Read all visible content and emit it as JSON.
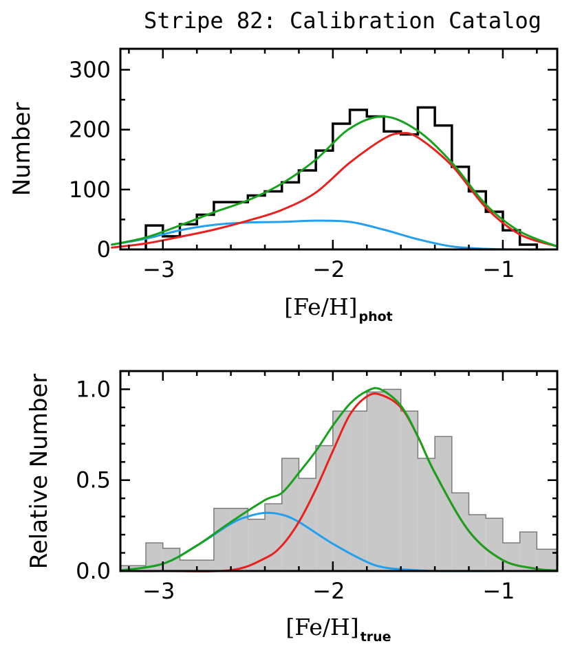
{
  "page": {
    "title": "Stripe 82: Calibration Catalog"
  },
  "chart_data": [
    {
      "type": "line",
      "panel": "top",
      "ylabel": "Number",
      "xlabel": {
        "main": "[Fe/H]",
        "sub": "phot"
      },
      "xlim": [
        -3.25,
        -0.68
      ],
      "ylim": [
        0,
        335
      ],
      "x_tick_labels": [
        {
          "v": -3,
          "label": "−3"
        },
        {
          "v": -2,
          "label": "−2"
        },
        {
          "v": -1,
          "label": "−1"
        }
      ],
      "y_tick_labels": [
        {
          "v": 0,
          "label": "0"
        },
        {
          "v": 100,
          "label": "100"
        },
        {
          "v": 200,
          "label": "200"
        },
        {
          "v": 300,
          "label": "300"
        }
      ],
      "x_minor_step": 0.2,
      "y_minor_step": 50,
      "histogram": {
        "style": "step",
        "color": "#000000",
        "bin_edges": [
          -3.1,
          -3.0,
          -2.9,
          -2.8,
          -2.7,
          -2.6,
          -2.5,
          -2.4,
          -2.3,
          -2.2,
          -2.1,
          -2.0,
          -1.9,
          -1.8,
          -1.7,
          -1.6,
          -1.5,
          -1.4,
          -1.3,
          -1.2,
          -1.1,
          -1.0,
          -0.9,
          -0.8
        ],
        "counts": [
          40,
          22,
          42,
          58,
          79,
          79,
          90,
          97,
          112,
          132,
          165,
          210,
          233,
          222,
          197,
          192,
          237,
          207,
          138,
          97,
          63,
          32,
          8
        ]
      },
      "series": [
        {
          "color": "#22a0ef",
          "x": [
            -3.3,
            -3.1,
            -2.9,
            -2.7,
            -2.5,
            -2.3,
            -2.1,
            -1.9,
            -1.7,
            -1.5,
            -1.3,
            -1.1,
            -0.9,
            -0.68
          ],
          "y": [
            8,
            18,
            32,
            41,
            45,
            46,
            48,
            46,
            33,
            17,
            5,
            1,
            0,
            0
          ]
        },
        {
          "color": "#e8201e",
          "x": [
            -3.3,
            -3.1,
            -2.9,
            -2.7,
            -2.5,
            -2.3,
            -2.1,
            -1.9,
            -1.7,
            -1.6,
            -1.5,
            -1.3,
            -1.1,
            -0.9,
            -0.68
          ],
          "y": [
            3,
            10,
            21,
            33,
            48,
            66,
            95,
            145,
            185,
            194,
            187,
            140,
            70,
            25,
            5
          ]
        },
        {
          "color": "#17a11c",
          "x": [
            -3.3,
            -3.1,
            -2.9,
            -2.7,
            -2.5,
            -2.3,
            -2.1,
            -1.9,
            -1.7,
            -1.5,
            -1.3,
            -1.1,
            -0.9,
            -0.68
          ],
          "y": [
            8,
            20,
            40,
            62,
            82,
            110,
            150,
            202,
            222,
            198,
            145,
            75,
            30,
            5
          ]
        }
      ]
    },
    {
      "type": "line",
      "panel": "bottom",
      "ylabel": "Relative Number",
      "xlabel": {
        "main": "[Fe/H]",
        "sub": "true"
      },
      "xlim": [
        -3.25,
        -0.68
      ],
      "ylim": [
        0,
        1.1
      ],
      "x_tick_labels": [
        {
          "v": -3,
          "label": "−3"
        },
        {
          "v": -2,
          "label": "−2"
        },
        {
          "v": -1,
          "label": "−1"
        }
      ],
      "y_tick_labels": [
        {
          "v": 0,
          "label": "0.0"
        },
        {
          "v": 0.5,
          "label": "0.5"
        },
        {
          "v": 1.0,
          "label": "1.0"
        }
      ],
      "x_minor_step": 0.2,
      "y_minor_step": 0.1,
      "histogram": {
        "style": "filled",
        "fill": "#c8c8c8",
        "edge": "#7a7a7a",
        "bin_edges": [
          -3.25,
          -3.1,
          -3.0,
          -2.9,
          -2.8,
          -2.7,
          -2.6,
          -2.5,
          -2.4,
          -2.3,
          -2.2,
          -2.1,
          -2.0,
          -1.9,
          -1.8,
          -1.7,
          -1.6,
          -1.5,
          -1.4,
          -1.3,
          -1.2,
          -1.1,
          -1.0,
          -0.9,
          -0.8,
          -0.68
        ],
        "counts": [
          0.03,
          0.155,
          0.125,
          0.06,
          0.06,
          0.345,
          0.345,
          0.285,
          0.37,
          0.62,
          0.51,
          0.69,
          0.88,
          0.88,
          0.985,
          1.0,
          0.88,
          0.62,
          0.74,
          0.43,
          0.31,
          0.29,
          0.155,
          0.215,
          0.12
        ]
      },
      "series": [
        {
          "color": "#22a0ef",
          "x": [
            -3.25,
            -3.0,
            -2.8,
            -2.6,
            -2.5,
            -2.4,
            -2.3,
            -2.2,
            -2.0,
            -1.8,
            -1.7,
            -1.6,
            -1.4,
            -1.0,
            -0.68
          ],
          "y": [
            0.003,
            0.04,
            0.14,
            0.26,
            0.3,
            0.32,
            0.31,
            0.27,
            0.15,
            0.05,
            0.02,
            0.01,
            0.0,
            0.0,
            0.0
          ]
        },
        {
          "color": "#e8201e",
          "x": [
            -3.25,
            -3.0,
            -2.6,
            -2.4,
            -2.3,
            -2.2,
            -2.1,
            -2.0,
            -1.9,
            -1.8,
            -1.72,
            -1.6,
            -1.5,
            -1.4,
            -1.2,
            -1.0,
            -0.8,
            -0.68
          ],
          "y": [
            0.0,
            0.0,
            0.005,
            0.07,
            0.14,
            0.27,
            0.45,
            0.66,
            0.86,
            0.96,
            0.97,
            0.9,
            0.74,
            0.54,
            0.22,
            0.06,
            0.012,
            0.003
          ]
        },
        {
          "color": "#17a11c",
          "x": [
            -3.25,
            -3.0,
            -2.8,
            -2.6,
            -2.4,
            -2.3,
            -2.2,
            -2.1,
            -2.0,
            -1.9,
            -1.8,
            -1.72,
            -1.6,
            -1.5,
            -1.4,
            -1.2,
            -1.0,
            -0.8,
            -0.68
          ],
          "y": [
            0.003,
            0.04,
            0.14,
            0.27,
            0.39,
            0.43,
            0.54,
            0.66,
            0.8,
            0.92,
            0.99,
            1.0,
            0.91,
            0.74,
            0.54,
            0.22,
            0.06,
            0.012,
            0.003
          ]
        }
      ]
    }
  ]
}
